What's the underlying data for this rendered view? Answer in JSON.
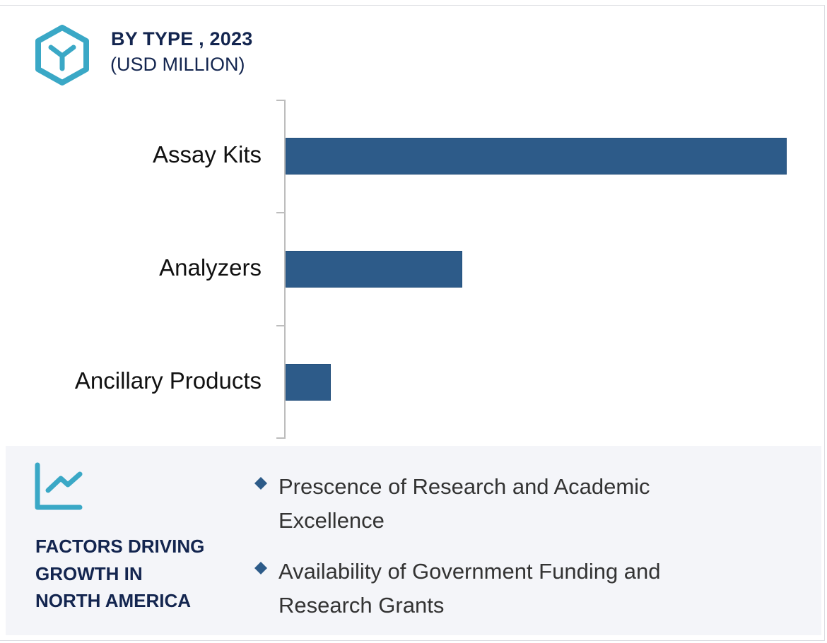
{
  "header": {
    "title": "BY TYPE , 2023",
    "subtitle": "(USD MILLION)",
    "icon": "hexagon-y-icon"
  },
  "colors": {
    "bar": "#2d5b89",
    "title": "#13254f",
    "icon_accent": "#3aa8c6",
    "panel_bg": "#f4f5f9",
    "axis": "#bdbdbd"
  },
  "chart_data": {
    "type": "bar",
    "orientation": "horizontal",
    "title": "BY TYPE , 2023",
    "subtitle": "(USD MILLION)",
    "categories": [
      "Assay Kits",
      "Analyzers",
      "Ancillary Products"
    ],
    "values": [
      100,
      35.3,
      9.0
    ],
    "value_note": "No numeric values shown; relative bar lengths normalized to Assay Kits = 100",
    "xlabel": "",
    "ylabel": "",
    "grid": false,
    "legend": null
  },
  "factors": {
    "icon": "line-chart-growth-icon",
    "heading_lines": [
      "FACTORS DRIVING",
      "GROWTH IN",
      "NORTH AMERICA"
    ],
    "bullets": [
      {
        "line1": "Prescence of Research and Academic",
        "line2": "Excellence"
      },
      {
        "line1": "Availability of Government Funding and",
        "line2": "Research Grants"
      }
    ]
  }
}
